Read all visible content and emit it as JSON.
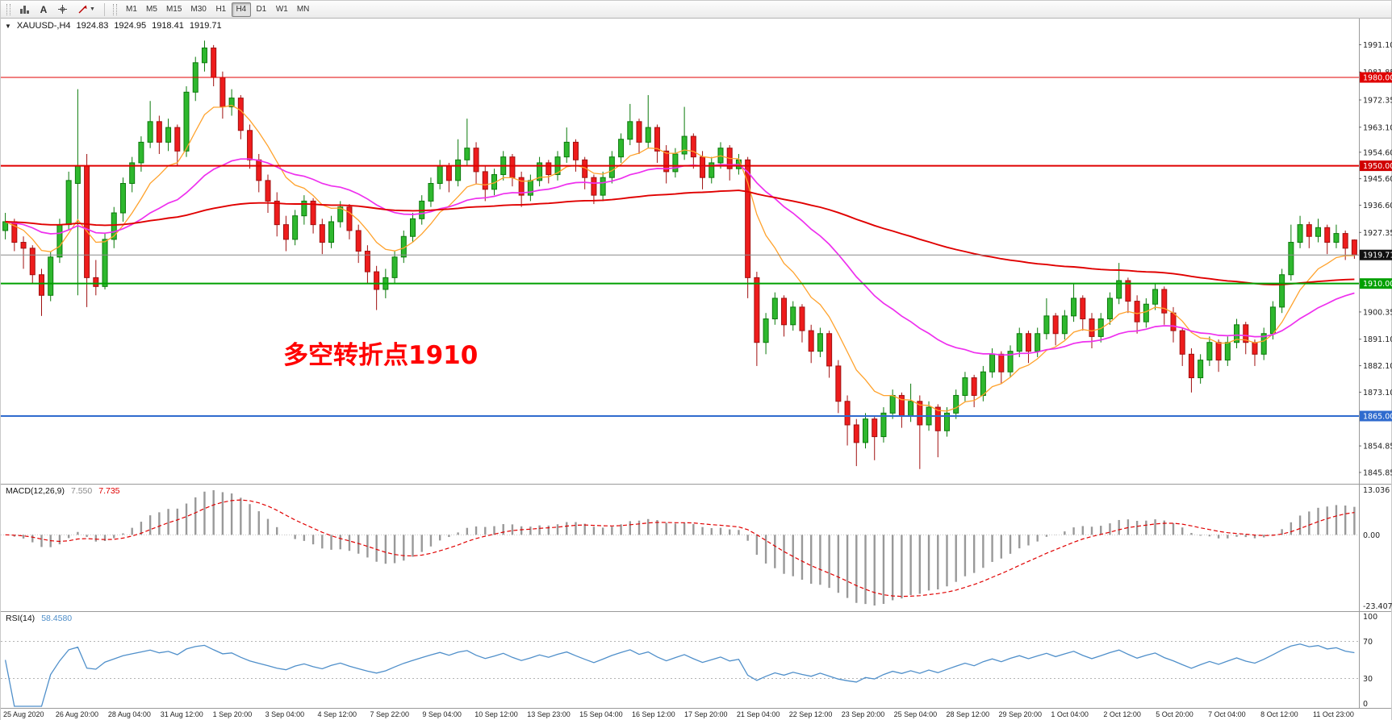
{
  "toolbar": {
    "text_tool_label": "A",
    "timeframes": [
      "M1",
      "M5",
      "M15",
      "M30",
      "H1",
      "H4",
      "D1",
      "W1",
      "MN"
    ],
    "active_timeframe": "H4"
  },
  "chart_header": {
    "symbol": "XAUUSD-,H4",
    "open": "1924.83",
    "high": "1924.95",
    "low": "1918.41",
    "close": "1919.71"
  },
  "annotation": {
    "text": "多空转折点1910",
    "color": "#FF0000"
  },
  "price_axis": {
    "ticks": [
      "1991.10",
      "1981.85",
      "1972.35",
      "1963.10",
      "1954.60",
      "1945.60",
      "1936.60",
      "1927.35",
      "1900.35",
      "1891.10",
      "1882.10",
      "1873.10",
      "1854.85",
      "1845.85"
    ]
  },
  "levels": [
    {
      "price": 1980.0,
      "label": "1980.00",
      "color": "#e00000",
      "badge": "#e00000",
      "width": 1
    },
    {
      "price": 1950.0,
      "label": "1950.00",
      "color": "#e00000",
      "badge": "#d00000",
      "width": 2
    },
    {
      "price": 1919.71,
      "label": "1919.71",
      "color": "#8a8a8a",
      "badge": "#111111",
      "width": 1
    },
    {
      "price": 1910.0,
      "label": "1910.00",
      "color": "#00a000",
      "badge": "#00a000",
      "width": 2
    },
    {
      "price": 1865.0,
      "label": "1865.00",
      "color": "#2f6bce",
      "badge": "#2f6bce",
      "width": 2
    }
  ],
  "macd_panel": {
    "label": "MACD(12,26,9)",
    "value_main": "7.550",
    "value_signal": "7.735",
    "scale_max": "13.036",
    "scale_zero": "0.00",
    "scale_min": "-23.407",
    "histogram_color": "#999999",
    "signal_color": "#e00000"
  },
  "rsi_panel": {
    "label": "RSI(14)",
    "value": "58.4580",
    "scale": [
      "100",
      "70",
      "30",
      "0"
    ],
    "level_lines": [
      70,
      30
    ],
    "line_color": "#4f8fca"
  },
  "time_axis": [
    "25 Aug 2020",
    "26 Aug 20:00",
    "28 Aug 04:00",
    "31 Aug 12:00",
    "1 Sep 20:00",
    "3 Sep 04:00",
    "4 Sep 12:00",
    "7 Sep 22:00",
    "9 Sep 04:00",
    "10 Sep 12:00",
    "13 Sep 23:00",
    "15 Sep 04:00",
    "16 Sep 12:00",
    "17 Sep 20:00",
    "21 Sep 04:00",
    "22 Sep 12:00",
    "23 Sep 20:00",
    "25 Sep 04:00",
    "28 Sep 12:00",
    "29 Sep 20:00",
    "1 Oct 04:00",
    "2 Oct 12:00",
    "5 Oct 20:00",
    "7 Oct 04:00",
    "8 Oct 12:00",
    "11 Oct 23:00"
  ],
  "chart_data": {
    "type": "candlestick",
    "symbol": "XAUUSD",
    "timeframe": "H4",
    "ylim": [
      1842,
      2000
    ],
    "colors": {
      "up": "#2eb82e",
      "up_stroke": "#0b7a0b",
      "down": "#ee1c1c",
      "down_stroke": "#a01010"
    },
    "moving_averages": [
      {
        "name": "fast",
        "period": 9,
        "color": "#ffa22c"
      },
      {
        "name": "medium",
        "period": 30,
        "color": "#ee30ee"
      },
      {
        "name": "slow",
        "period": 130,
        "color": "#e00000"
      }
    ],
    "indicators": [
      {
        "type": "MACD",
        "params": [
          12,
          26,
          9
        ]
      },
      {
        "type": "RSI",
        "params": [
          14
        ]
      }
    ],
    "candles": [
      [
        1928,
        1934,
        1925,
        1931
      ],
      [
        1931,
        1932,
        1921,
        1924
      ],
      [
        1924,
        1926,
        1915,
        1922
      ],
      [
        1922,
        1923,
        1910,
        1913
      ],
      [
        1913,
        1915,
        1899,
        1906
      ],
      [
        1906,
        1921,
        1904,
        1919
      ],
      [
        1919,
        1932,
        1917,
        1930
      ],
      [
        1930,
        1948,
        1928,
        1945
      ],
      [
        1944,
        1976,
        1906,
        1950
      ],
      [
        1950,
        1954,
        1902,
        1912
      ],
      [
        1912,
        1918,
        1906,
        1909
      ],
      [
        1909,
        1927,
        1908,
        1925
      ],
      [
        1925,
        1936,
        1922,
        1934
      ],
      [
        1934,
        1946,
        1931,
        1944
      ],
      [
        1944,
        1953,
        1941,
        1951
      ],
      [
        1951,
        1960,
        1948,
        1958
      ],
      [
        1958,
        1972,
        1956,
        1965
      ],
      [
        1965,
        1967,
        1954,
        1958
      ],
      [
        1958,
        1966,
        1955,
        1963
      ],
      [
        1963,
        1964,
        1950,
        1955
      ],
      [
        1955,
        1977,
        1953,
        1975
      ],
      [
        1975,
        1987,
        1972,
        1985
      ],
      [
        1985,
        1992.5,
        1982,
        1990
      ],
      [
        1990,
        1991,
        1977,
        1980
      ],
      [
        1980,
        1982,
        1966,
        1970
      ],
      [
        1970,
        1976,
        1967,
        1973
      ],
      [
        1973,
        1974,
        1959,
        1962
      ],
      [
        1962,
        1964,
        1949,
        1952
      ],
      [
        1952,
        1954,
        1941,
        1945
      ],
      [
        1945,
        1947,
        1934,
        1938
      ],
      [
        1938,
        1941,
        1926,
        1930
      ],
      [
        1930,
        1933,
        1921,
        1925
      ],
      [
        1925,
        1935,
        1923,
        1933
      ],
      [
        1933,
        1940,
        1930,
        1938
      ],
      [
        1938,
        1939,
        1927,
        1930
      ],
      [
        1930,
        1932,
        1920,
        1924
      ],
      [
        1924,
        1933,
        1922,
        1931
      ],
      [
        1931,
        1938,
        1929,
        1936
      ],
      [
        1936,
        1937,
        1925,
        1928
      ],
      [
        1928,
        1930,
        1917,
        1921
      ],
      [
        1921,
        1923,
        1910,
        1914
      ],
      [
        1914,
        1916,
        1901,
        1908
      ],
      [
        1908,
        1915,
        1905,
        1912
      ],
      [
        1912,
        1921,
        1910,
        1919
      ],
      [
        1919,
        1928,
        1917,
        1926
      ],
      [
        1926,
        1934,
        1924,
        1932
      ],
      [
        1932,
        1940,
        1930,
        1938
      ],
      [
        1938,
        1946,
        1936,
        1944
      ],
      [
        1944,
        1952,
        1942,
        1950
      ],
      [
        1950,
        1951,
        1941,
        1945
      ],
      [
        1945,
        1959,
        1943,
        1952
      ],
      [
        1952,
        1966,
        1950,
        1956
      ],
      [
        1956,
        1958,
        1944,
        1948
      ],
      [
        1948,
        1950,
        1938,
        1942
      ],
      [
        1942,
        1949,
        1940,
        1947
      ],
      [
        1947,
        1955,
        1945,
        1953
      ],
      [
        1953,
        1954,
        1943,
        1946
      ],
      [
        1946,
        1948,
        1936,
        1940
      ],
      [
        1940,
        1947,
        1938,
        1945
      ],
      [
        1945,
        1953,
        1943,
        1951
      ],
      [
        1951,
        1952,
        1944,
        1947
      ],
      [
        1947,
        1955,
        1945,
        1953
      ],
      [
        1953,
        1963,
        1951,
        1958
      ],
      [
        1958,
        1959,
        1948,
        1952
      ],
      [
        1952,
        1953,
        1942,
        1946
      ],
      [
        1946,
        1947,
        1937,
        1940
      ],
      [
        1940,
        1948,
        1938,
        1946
      ],
      [
        1946,
        1955,
        1944,
        1953
      ],
      [
        1953,
        1961,
        1951,
        1959
      ],
      [
        1959,
        1971,
        1957,
        1965
      ],
      [
        1965,
        1966,
        1954,
        1958
      ],
      [
        1958,
        1974,
        1956,
        1963
      ],
      [
        1963,
        1964,
        1951,
        1955
      ],
      [
        1955,
        1957,
        1944,
        1948
      ],
      [
        1948,
        1956,
        1946,
        1954
      ],
      [
        1954,
        1970,
        1952,
        1960
      ],
      [
        1960,
        1961,
        1949,
        1953
      ],
      [
        1953,
        1955,
        1942,
        1946
      ],
      [
        1946,
        1953,
        1944,
        1951
      ],
      [
        1951,
        1958,
        1949,
        1956
      ],
      [
        1956,
        1957,
        1945,
        1949
      ],
      [
        1949,
        1954,
        1947,
        1952
      ],
      [
        1952,
        1953,
        1905,
        1912
      ],
      [
        1912,
        1914,
        1882,
        1890
      ],
      [
        1890,
        1900,
        1886,
        1898
      ],
      [
        1898,
        1907,
        1896,
        1905
      ],
      [
        1905,
        1906,
        1892,
        1896
      ],
      [
        1896,
        1904,
        1894,
        1902
      ],
      [
        1902,
        1903,
        1890,
        1894
      ],
      [
        1894,
        1896,
        1883,
        1887
      ],
      [
        1887,
        1895,
        1885,
        1893
      ],
      [
        1893,
        1894,
        1878,
        1882
      ],
      [
        1882,
        1884,
        1866,
        1870
      ],
      [
        1870,
        1872,
        1855,
        1862
      ],
      [
        1862,
        1864,
        1848,
        1856
      ],
      [
        1856,
        1866,
        1854,
        1864
      ],
      [
        1864,
        1865,
        1850,
        1858
      ],
      [
        1858,
        1868,
        1856,
        1866
      ],
      [
        1866,
        1874,
        1864,
        1872
      ],
      [
        1872,
        1873,
        1861,
        1865
      ],
      [
        1865,
        1876,
        1863,
        1870
      ],
      [
        1870,
        1872,
        1847,
        1862
      ],
      [
        1862,
        1870,
        1860,
        1868
      ],
      [
        1868,
        1869,
        1851,
        1860
      ],
      [
        1860,
        1868,
        1858,
        1866
      ],
      [
        1866,
        1874,
        1864,
        1872
      ],
      [
        1872,
        1880,
        1870,
        1878
      ],
      [
        1878,
        1879,
        1868,
        1872
      ],
      [
        1872,
        1882,
        1870,
        1880
      ],
      [
        1880,
        1888,
        1878,
        1886
      ],
      [
        1886,
        1887,
        1876,
        1880
      ],
      [
        1880,
        1889,
        1878,
        1887
      ],
      [
        1887,
        1895,
        1885,
        1893
      ],
      [
        1893,
        1894,
        1883,
        1887
      ],
      [
        1887,
        1895,
        1885,
        1893
      ],
      [
        1893,
        1905,
        1891,
        1899
      ],
      [
        1899,
        1900,
        1889,
        1893
      ],
      [
        1893,
        1901,
        1891,
        1899
      ],
      [
        1899,
        1910,
        1897,
        1905
      ],
      [
        1905,
        1906,
        1894,
        1898
      ],
      [
        1898,
        1900,
        1888,
        1892
      ],
      [
        1892,
        1900,
        1890,
        1898
      ],
      [
        1898,
        1907,
        1896,
        1905
      ],
      [
        1905,
        1917,
        1903,
        1911
      ],
      [
        1911,
        1912,
        1900,
        1904
      ],
      [
        1904,
        1906,
        1893,
        1897
      ],
      [
        1897,
        1905,
        1895,
        1903
      ],
      [
        1903,
        1910,
        1901,
        1908
      ],
      [
        1908,
        1909,
        1896,
        1900
      ],
      [
        1900,
        1902,
        1890,
        1894
      ],
      [
        1894,
        1895,
        1882,
        1886
      ],
      [
        1886,
        1888,
        1873,
        1878
      ],
      [
        1878,
        1886,
        1876,
        1884
      ],
      [
        1884,
        1892,
        1882,
        1890
      ],
      [
        1890,
        1891,
        1880,
        1884
      ],
      [
        1884,
        1892,
        1882,
        1890
      ],
      [
        1890,
        1898,
        1888,
        1896
      ],
      [
        1896,
        1897,
        1886,
        1890
      ],
      [
        1890,
        1891,
        1882,
        1886
      ],
      [
        1886,
        1895,
        1884,
        1893
      ],
      [
        1893,
        1904,
        1891,
        1902
      ],
      [
        1902,
        1915,
        1900,
        1913
      ],
      [
        1913,
        1930,
        1911,
        1924
      ],
      [
        1924,
        1933,
        1922,
        1930
      ],
      [
        1930,
        1931,
        1922,
        1926
      ],
      [
        1926,
        1932,
        1924,
        1929
      ],
      [
        1929,
        1930,
        1920,
        1924
      ],
      [
        1924,
        1930,
        1922,
        1927
      ],
      [
        1927,
        1928,
        1918,
        1922
      ],
      [
        1924.8,
        1925,
        1918.4,
        1919.7
      ]
    ]
  }
}
